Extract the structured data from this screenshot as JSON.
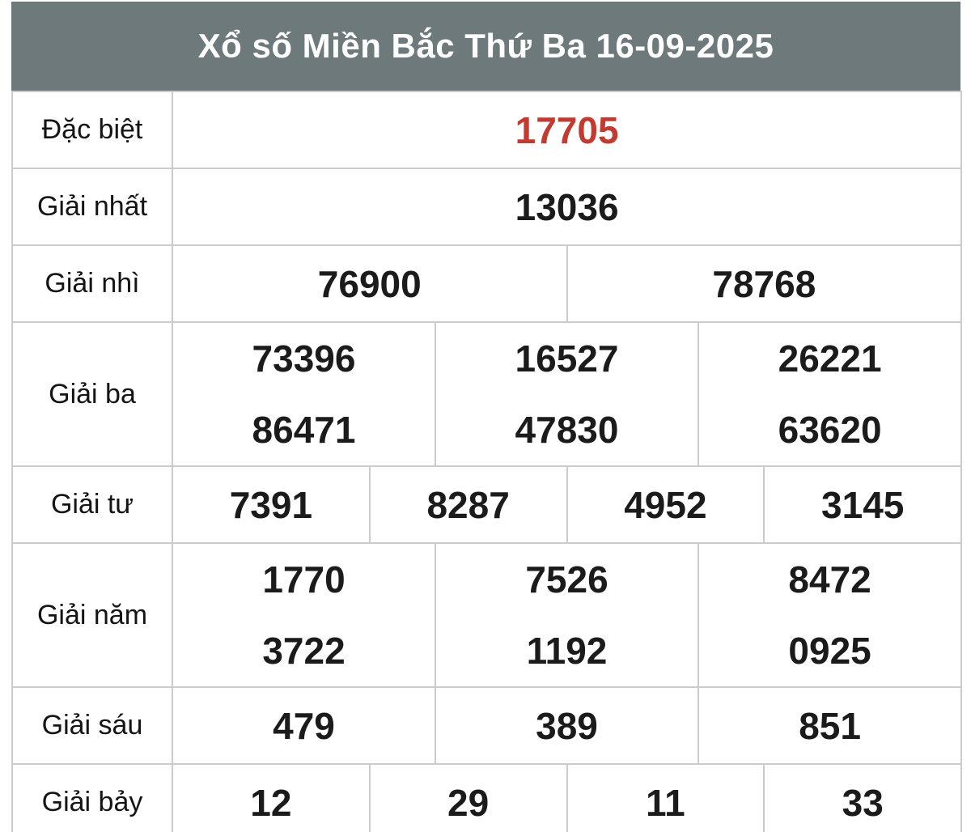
{
  "header": {
    "title": "Xổ số Miền Bắc Thứ Ba 16-09-2025"
  },
  "colors": {
    "header_bg": "#6e797b",
    "special_number": "#c23b31",
    "border": "#cbcbcb",
    "number_text": "#1b1b1b"
  },
  "table": {
    "rows": [
      {
        "label": "Đặc biệt",
        "highlight": true,
        "columns": [
          [
            "17705"
          ]
        ]
      },
      {
        "label": "Giải nhất",
        "highlight": false,
        "columns": [
          [
            "13036"
          ]
        ]
      },
      {
        "label": "Giải nhì",
        "highlight": false,
        "columns": [
          [
            "76900"
          ],
          [
            "78768"
          ]
        ]
      },
      {
        "label": "Giải ba",
        "highlight": false,
        "columns": [
          [
            "73396",
            "86471"
          ],
          [
            "16527",
            "47830"
          ],
          [
            "26221",
            "63620"
          ]
        ]
      },
      {
        "label": "Giải tư",
        "highlight": false,
        "columns": [
          [
            "7391"
          ],
          [
            "8287"
          ],
          [
            "4952"
          ],
          [
            "3145"
          ]
        ]
      },
      {
        "label": "Giải năm",
        "highlight": false,
        "columns": [
          [
            "1770",
            "3722"
          ],
          [
            "7526",
            "1192"
          ],
          [
            "8472",
            "0925"
          ]
        ]
      },
      {
        "label": "Giải sáu",
        "highlight": false,
        "columns": [
          [
            "479"
          ],
          [
            "389"
          ],
          [
            "851"
          ]
        ]
      },
      {
        "label": "Giải bảy",
        "highlight": false,
        "columns": [
          [
            "12"
          ],
          [
            "29"
          ],
          [
            "11"
          ],
          [
            "33"
          ]
        ]
      }
    ]
  }
}
